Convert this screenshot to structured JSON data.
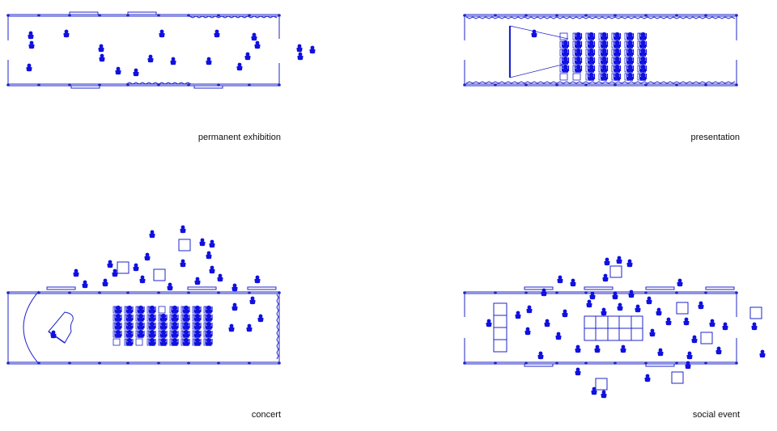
{
  "colors": {
    "line": "#1f25c9",
    "figure": "#1010e0",
    "text": "#111111",
    "background": "#ffffff"
  },
  "icons": [
    "person-figure",
    "seated-person",
    "chair",
    "table",
    "grand-piano",
    "screen",
    "speaker"
  ],
  "plans": [
    {
      "key": "permanent_exhibition",
      "label": "permanent exhibition"
    },
    {
      "key": "presentation",
      "label": "presentation"
    },
    {
      "key": "concert",
      "label": "concert"
    },
    {
      "key": "social_event",
      "label": "social event"
    }
  ]
}
